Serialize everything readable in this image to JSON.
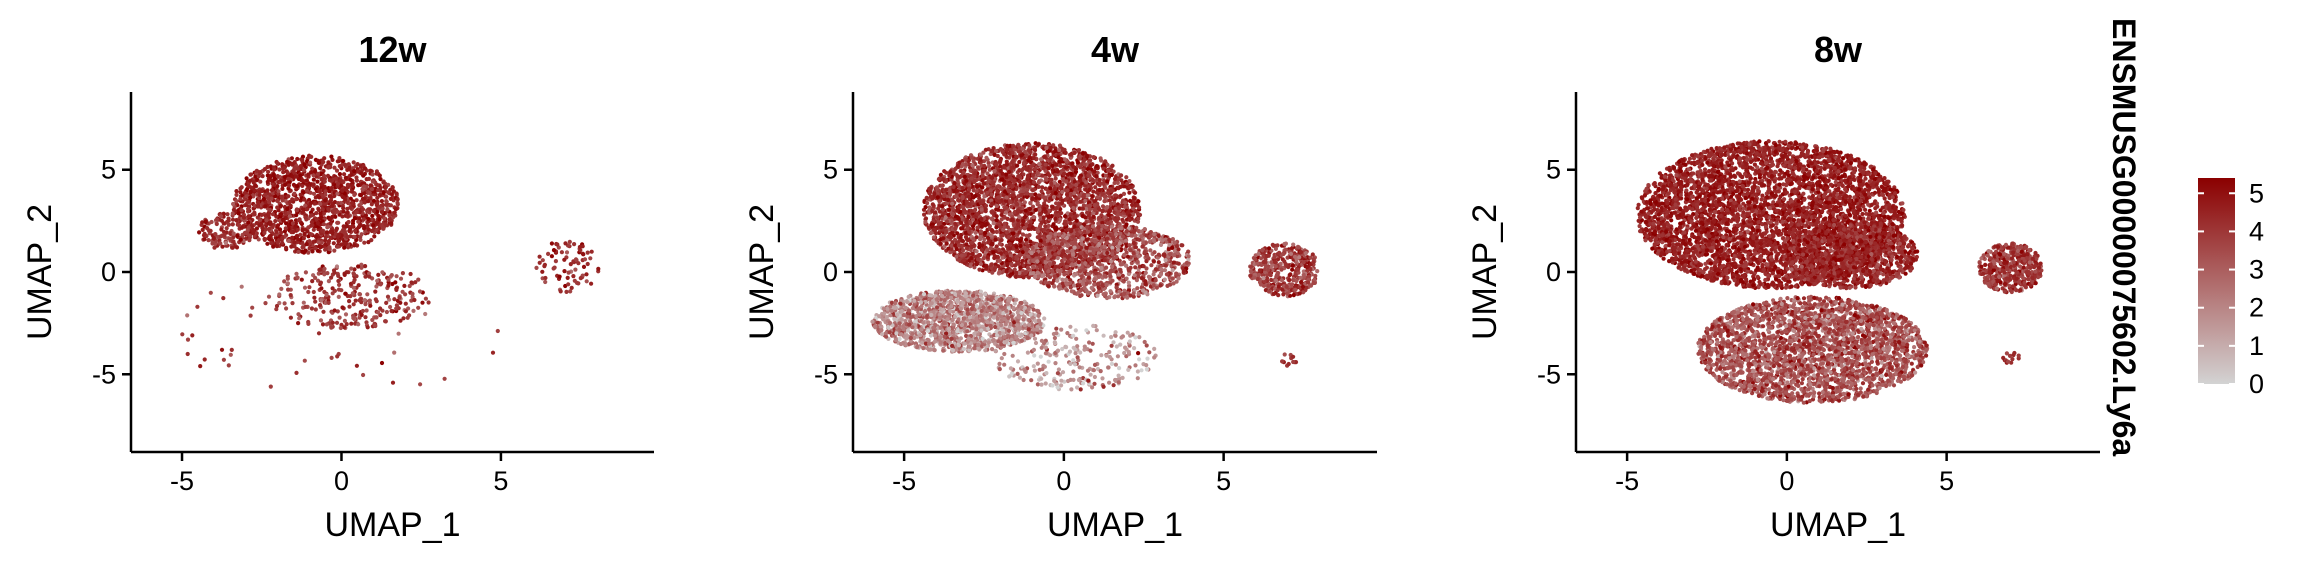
{
  "chart_data": {
    "type": "scatter",
    "colorbar": {
      "title": "ENSMUSG00000075602.Ly6a",
      "ticks": [
        0,
        1,
        2,
        3,
        4,
        5
      ],
      "range": [
        0,
        5.4
      ],
      "low_color": "#d3d3d3",
      "high_color": "#8b0000",
      "placement": "right"
    },
    "panels": [
      {
        "title": "12w",
        "xlabel": "UMAP_1",
        "ylabel": "UMAP_2",
        "xlim": [
          -6.6,
          9.8
        ],
        "ylim": [
          -8.8,
          8.8
        ],
        "xticks": [
          -5,
          0,
          5
        ],
        "yticks": [
          -5,
          0,
          5
        ],
        "point_clusters": [
          {
            "cx": -0.8,
            "cy": 3.3,
            "rx": 2.6,
            "ry": 2.4,
            "n": 1400,
            "mean": 4.6,
            "sd": 0.55
          },
          {
            "cx": -3.6,
            "cy": 2.0,
            "rx": 0.9,
            "ry": 0.9,
            "n": 140,
            "mean": 4.2,
            "sd": 0.6
          },
          {
            "cx": 0.3,
            "cy": -1.2,
            "rx": 2.6,
            "ry": 1.6,
            "n": 280,
            "mean": 3.9,
            "sd": 0.7
          },
          {
            "cx": 7.1,
            "cy": 0.3,
            "rx": 1.0,
            "ry": 1.3,
            "n": 80,
            "mean": 4.2,
            "sd": 0.6
          },
          {
            "cx": 0.0,
            "cy": -3.0,
            "rx": 5.5,
            "ry": 3.0,
            "n": 45,
            "mean": 3.8,
            "sd": 0.8
          }
        ]
      },
      {
        "title": "4w",
        "xlabel": "UMAP_1",
        "ylabel": "UMAP_2",
        "xlim": [
          -6.6,
          9.8
        ],
        "ylim": [
          -8.8,
          8.8
        ],
        "xticks": [
          -5,
          0,
          5
        ],
        "yticks": [
          -5,
          0,
          5
        ],
        "point_clusters": [
          {
            "cx": -1.0,
            "cy": 3.0,
            "rx": 3.4,
            "ry": 3.3,
            "n": 3000,
            "mean": 4.3,
            "sd": 0.7
          },
          {
            "cx": 1.4,
            "cy": 0.5,
            "rx": 2.6,
            "ry": 1.8,
            "n": 900,
            "mean": 3.4,
            "sd": 0.9
          },
          {
            "cx": -3.3,
            "cy": -2.4,
            "rx": 2.7,
            "ry": 1.5,
            "n": 1400,
            "mean": 2.0,
            "sd": 1.0
          },
          {
            "cx": 0.4,
            "cy": -4.2,
            "rx": 2.6,
            "ry": 1.6,
            "n": 240,
            "mean": 1.6,
            "sd": 1.1
          },
          {
            "cx": 6.9,
            "cy": 0.1,
            "rx": 1.1,
            "ry": 1.3,
            "n": 420,
            "mean": 3.8,
            "sd": 0.8
          },
          {
            "cx": 7.0,
            "cy": -4.3,
            "rx": 0.3,
            "ry": 0.3,
            "n": 12,
            "mean": 4.2,
            "sd": 0.4
          }
        ]
      },
      {
        "title": "8w",
        "xlabel": "UMAP_1",
        "ylabel": "UMAP_2",
        "xlim": [
          -6.6,
          9.8
        ],
        "ylim": [
          -8.8,
          8.8
        ],
        "xticks": [
          -5,
          0,
          5
        ],
        "yticks": [
          -5,
          0,
          5
        ],
        "point_clusters": [
          {
            "cx": -0.5,
            "cy": 2.8,
            "rx": 4.2,
            "ry": 3.6,
            "n": 4200,
            "mean": 4.6,
            "sd": 0.5
          },
          {
            "cx": 2.0,
            "cy": 0.8,
            "rx": 2.1,
            "ry": 1.6,
            "n": 900,
            "mean": 4.4,
            "sd": 0.6
          },
          {
            "cx": 0.8,
            "cy": -3.8,
            "rx": 3.6,
            "ry": 2.6,
            "n": 2600,
            "mean": 3.3,
            "sd": 0.9
          },
          {
            "cx": 7.0,
            "cy": 0.2,
            "rx": 1.0,
            "ry": 1.2,
            "n": 420,
            "mean": 4.1,
            "sd": 0.7
          },
          {
            "cx": 7.0,
            "cy": -4.2,
            "rx": 0.3,
            "ry": 0.3,
            "n": 14,
            "mean": 4.2,
            "sd": 0.4
          }
        ]
      }
    ]
  }
}
